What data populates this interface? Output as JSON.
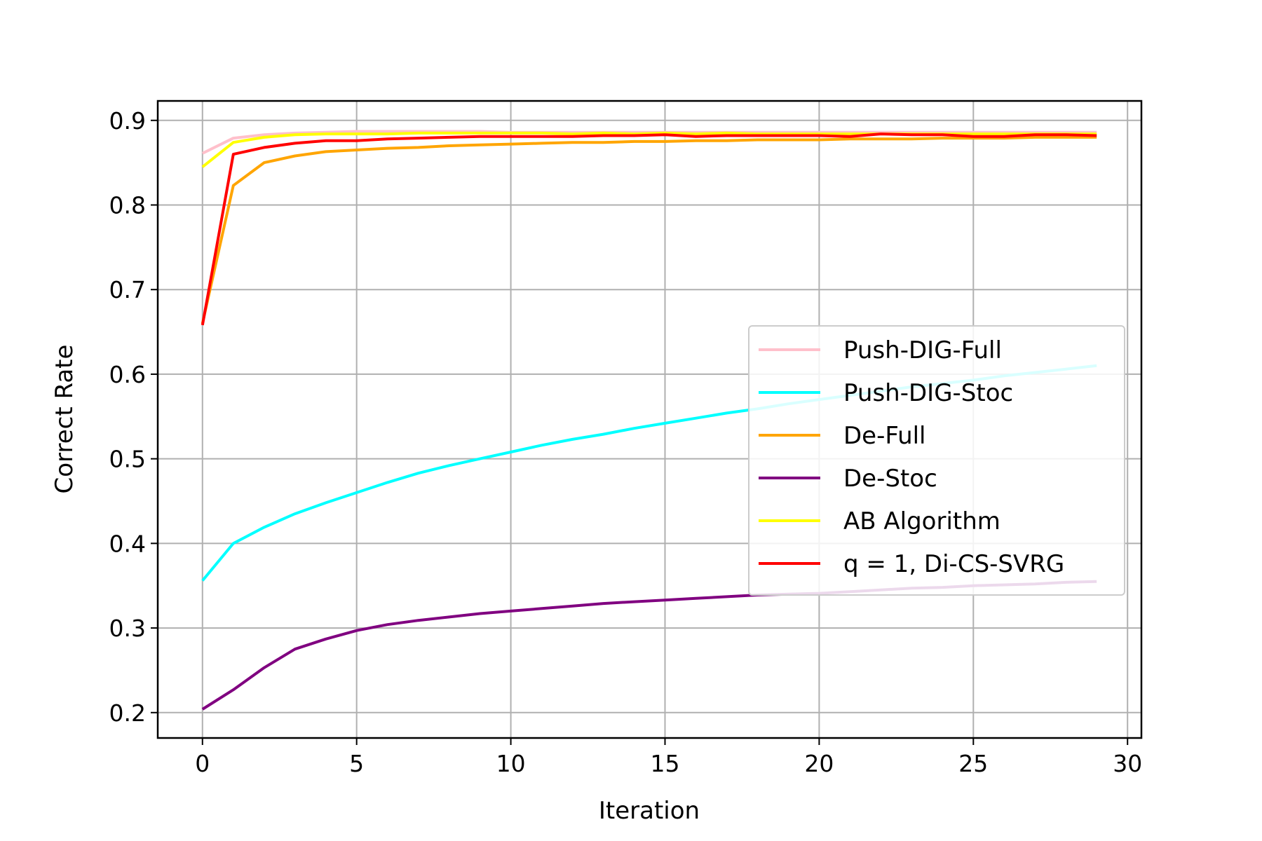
{
  "chart_data": {
    "type": "line",
    "title": "",
    "xlabel": "Iteration",
    "ylabel": "Correct Rate",
    "xlim": [
      -1.45,
      30.45
    ],
    "ylim": [
      0.17,
      0.923
    ],
    "xticks": [
      0,
      5,
      10,
      15,
      20,
      25,
      30
    ],
    "yticks": [
      0.2,
      0.3,
      0.4,
      0.5,
      0.6,
      0.7,
      0.8,
      0.9
    ],
    "xtick_labels": [
      "0",
      "5",
      "10",
      "15",
      "20",
      "25",
      "30"
    ],
    "ytick_labels": [
      "0.2",
      "0.3",
      "0.4",
      "0.5",
      "0.6",
      "0.7",
      "0.8",
      "0.9"
    ],
    "grid": true,
    "legend_position": "center-right",
    "x": [
      0,
      1,
      2,
      3,
      4,
      5,
      6,
      7,
      8,
      9,
      10,
      11,
      12,
      13,
      14,
      15,
      16,
      17,
      18,
      19,
      20,
      21,
      22,
      23,
      24,
      25,
      26,
      27,
      28,
      29
    ],
    "series": [
      {
        "name": "Push-DIG-Full",
        "color": "#ffc0cb",
        "values": [
          0.861,
          0.879,
          0.883,
          0.885,
          0.886,
          0.887,
          0.887,
          0.887,
          0.887,
          0.887,
          0.886,
          0.886,
          0.886,
          0.886,
          0.886,
          0.886,
          0.886,
          0.886,
          0.886,
          0.886,
          0.886,
          0.886,
          0.886,
          0.886,
          0.886,
          0.886,
          0.886,
          0.886,
          0.886,
          0.886
        ]
      },
      {
        "name": "Push-DIG-Stoc",
        "color": "#00ffff",
        "values": [
          0.356,
          0.4,
          0.419,
          0.435,
          0.448,
          0.46,
          0.472,
          0.483,
          0.492,
          0.5,
          0.508,
          0.516,
          0.523,
          0.529,
          0.536,
          0.542,
          0.548,
          0.554,
          0.559,
          0.565,
          0.57,
          0.575,
          0.58,
          0.585,
          0.589,
          0.593,
          0.598,
          0.602,
          0.606,
          0.61
        ]
      },
      {
        "name": "De-Full",
        "color": "#ffa500",
        "values": [
          0.66,
          0.823,
          0.85,
          0.858,
          0.863,
          0.865,
          0.867,
          0.868,
          0.87,
          0.871,
          0.872,
          0.873,
          0.874,
          0.874,
          0.875,
          0.875,
          0.876,
          0.876,
          0.877,
          0.877,
          0.877,
          0.878,
          0.878,
          0.878,
          0.879,
          0.879,
          0.879,
          0.88,
          0.88,
          0.88
        ]
      },
      {
        "name": "De-Stoc",
        "color": "#800080",
        "values": [
          0.204,
          0.227,
          0.253,
          0.275,
          0.287,
          0.297,
          0.304,
          0.309,
          0.313,
          0.317,
          0.32,
          0.323,
          0.326,
          0.329,
          0.331,
          0.333,
          0.335,
          0.337,
          0.339,
          0.34,
          0.341,
          0.343,
          0.345,
          0.347,
          0.348,
          0.35,
          0.351,
          0.352,
          0.354,
          0.355
        ]
      },
      {
        "name": "AB Algorithm",
        "color": "#ffff00",
        "values": [
          0.845,
          0.874,
          0.88,
          0.883,
          0.884,
          0.884,
          0.884,
          0.885,
          0.885,
          0.885,
          0.885,
          0.885,
          0.884,
          0.885,
          0.884,
          0.885,
          0.884,
          0.885,
          0.884,
          0.884,
          0.884,
          0.884,
          0.884,
          0.884,
          0.884,
          0.884,
          0.884,
          0.884,
          0.884,
          0.884
        ]
      },
      {
        "name": "q = 1, Di-CS-SVRG",
        "color": "#ff0000",
        "values": [
          0.658,
          0.86,
          0.868,
          0.873,
          0.876,
          0.876,
          0.878,
          0.879,
          0.88,
          0.881,
          0.881,
          0.881,
          0.881,
          0.882,
          0.882,
          0.883,
          0.881,
          0.882,
          0.882,
          0.882,
          0.882,
          0.881,
          0.884,
          0.883,
          0.883,
          0.881,
          0.881,
          0.883,
          0.883,
          0.882
        ]
      }
    ]
  }
}
